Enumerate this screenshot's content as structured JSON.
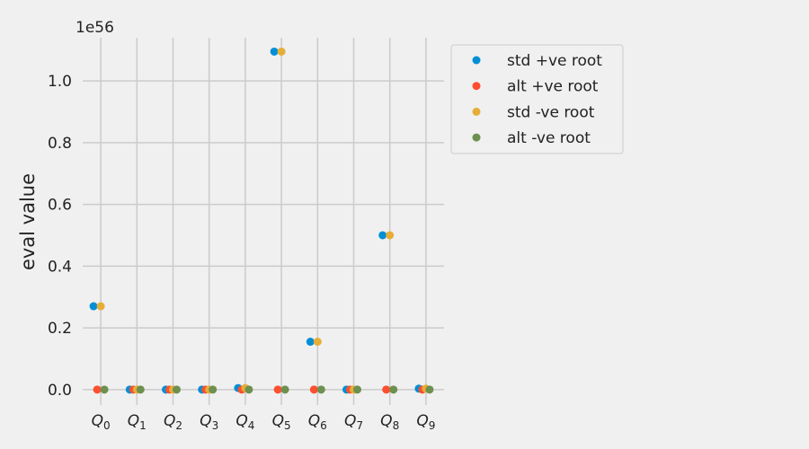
{
  "chart_data": {
    "type": "scatter",
    "title": "",
    "xlabel": "",
    "ylabel": "eval value",
    "y_offset_label": "1e56",
    "y_scale_exponent": 56,
    "categories": [
      {
        "base": "Q",
        "sub": "0"
      },
      {
        "base": "Q",
        "sub": "1"
      },
      {
        "base": "Q",
        "sub": "2"
      },
      {
        "base": "Q",
        "sub": "3"
      },
      {
        "base": "Q",
        "sub": "4"
      },
      {
        "base": "Q",
        "sub": "5"
      },
      {
        "base": "Q",
        "sub": "6"
      },
      {
        "base": "Q",
        "sub": "7"
      },
      {
        "base": "Q",
        "sub": "8"
      },
      {
        "base": "Q",
        "sub": "9"
      }
    ],
    "ylim": [
      -0.05,
      1.14
    ],
    "yticks": [
      0.0,
      0.2,
      0.4,
      0.6,
      0.8,
      1.0
    ],
    "ytick_labels": [
      "0.0",
      "0.2",
      "0.4",
      "0.6",
      "0.8",
      "1.0"
    ],
    "grid": true,
    "legend_position": "outside-upper-right",
    "series": [
      {
        "name": "std +ve root",
        "color": "#008fd5",
        "values": [
          0.27,
          0.0,
          0.0,
          0.0,
          0.005,
          1.095,
          0.155,
          0.0,
          0.5,
          0.003
        ]
      },
      {
        "name": "alt +ve root",
        "color": "#fc4f30",
        "values": [
          0.0,
          0.0,
          0.0,
          0.0,
          0.0,
          0.0,
          0.0,
          0.0,
          0.0,
          0.0
        ]
      },
      {
        "name": "std -ve root",
        "color": "#e5ae38",
        "values": [
          0.27,
          0.0,
          0.0,
          0.0,
          0.005,
          1.095,
          0.155,
          0.0,
          0.5,
          0.003
        ]
      },
      {
        "name": "alt -ve root",
        "color": "#6d904f",
        "values": [
          0.0,
          0.0,
          0.0,
          0.0,
          0.0,
          0.0,
          0.0,
          0.0,
          0.0,
          0.0
        ]
      }
    ]
  }
}
